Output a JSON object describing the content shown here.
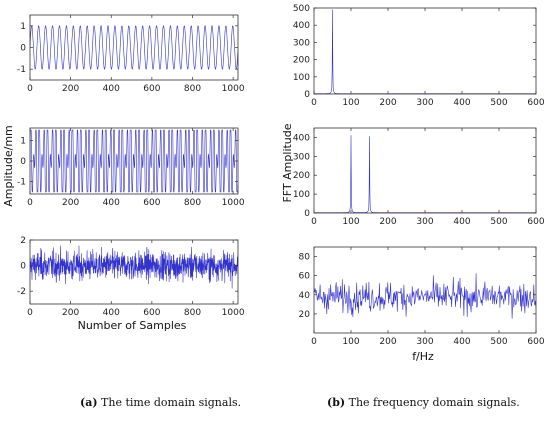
{
  "left_column": {
    "ylabel": "Amplitude/mm",
    "xlabel": "Number of Samples",
    "caption_tag": "(a)",
    "caption_text": " The time domain signals."
  },
  "right_column": {
    "ylabel": "FFT Amplitude",
    "xlabel": "f/Hz",
    "caption_tag": "(b)",
    "caption_text": " The frequency domain signals."
  },
  "line_color": "#3333cc",
  "chart_data": [
    {
      "id": "time-1",
      "type": "line",
      "xlim": [
        0,
        1024
      ],
      "ylim": [
        -1.5,
        1.5
      ],
      "xticks": [
        0,
        200,
        400,
        600,
        800,
        1000
      ],
      "yticks": [
        1,
        0,
        -1
      ],
      "signal": {
        "kind": "sine",
        "amplitude": 1,
        "cycles": 30,
        "n": 1024
      }
    },
    {
      "id": "time-2",
      "type": "line",
      "xlim": [
        0,
        1024
      ],
      "ylim": [
        -1.6,
        1.6
      ],
      "xticks": [
        0,
        200,
        400,
        600,
        800,
        1000
      ],
      "yticks": [
        1,
        0,
        -1
      ],
      "signal": {
        "kind": "two-tone",
        "amplitude": 1.5,
        "cycles": [
          50,
          75
        ],
        "n": 1024
      }
    },
    {
      "id": "time-3",
      "type": "line",
      "xlim": [
        0,
        1024
      ],
      "ylim": [
        -3,
        2
      ],
      "xticks": [
        0,
        200,
        400,
        600,
        800,
        1000
      ],
      "yticks": [
        2,
        0,
        -2
      ],
      "signal": {
        "kind": "noise",
        "std": 0.8,
        "n": 1024
      }
    },
    {
      "id": "freq-1",
      "type": "line",
      "xlim": [
        0,
        600
      ],
      "ylim": [
        0,
        500
      ],
      "xticks": [
        0,
        100,
        200,
        300,
        400,
        500,
        600
      ],
      "yticks": [
        500,
        400,
        300,
        200,
        100,
        0
      ],
      "peaks": [
        {
          "f": 50,
          "amp": 490
        }
      ]
    },
    {
      "id": "freq-2",
      "type": "line",
      "xlim": [
        0,
        600
      ],
      "ylim": [
        0,
        450
      ],
      "xticks": [
        0,
        100,
        200,
        300,
        400,
        500,
        600
      ],
      "yticks": [
        400,
        300,
        200,
        100,
        0
      ],
      "peaks": [
        {
          "f": 100,
          "amp": 410
        },
        {
          "f": 150,
          "amp": 405
        }
      ]
    },
    {
      "id": "freq-3",
      "type": "line",
      "xlim": [
        0,
        600
      ],
      "ylim": [
        0,
        90
      ],
      "xticks": [
        0,
        100,
        200,
        300,
        400,
        500,
        600
      ],
      "yticks": [
        80,
        60,
        40,
        20
      ],
      "noise": {
        "mean": 38,
        "range": [
          15,
          85
        ]
      }
    }
  ]
}
